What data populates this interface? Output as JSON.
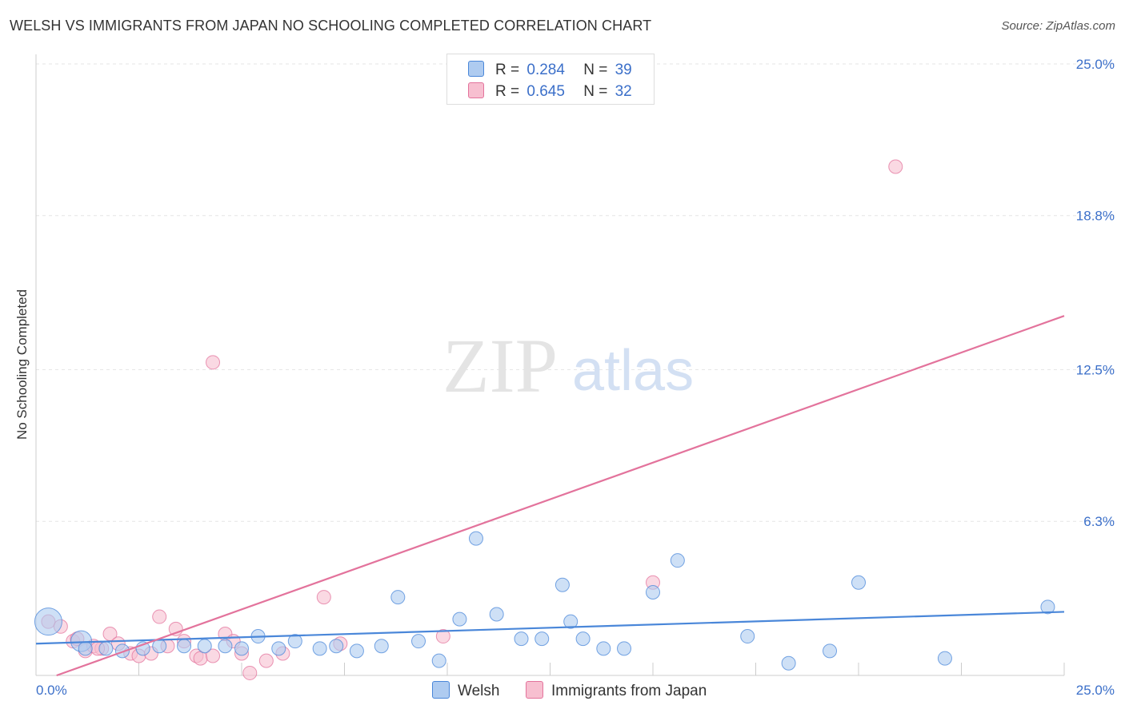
{
  "title": "WELSH VS IMMIGRANTS FROM JAPAN NO SCHOOLING COMPLETED CORRELATION CHART",
  "source": "Source: ZipAtlas.com",
  "watermark": {
    "zip": "ZIP",
    "atlas": "atlas"
  },
  "legend": {
    "r_label": "R =",
    "n_label": "N =",
    "rows": [
      {
        "r": "0.284",
        "n": "39"
      },
      {
        "r": "0.645",
        "n": "32"
      }
    ]
  },
  "chart_data": {
    "type": "scatter",
    "title": "WELSH VS IMMIGRANTS FROM JAPAN NO SCHOOLING COMPLETED CORRELATION CHART",
    "xlabel": "",
    "ylabel": "No Schooling Completed",
    "xlim": [
      0,
      25
    ],
    "ylim": [
      0,
      25
    ],
    "x_tick_labels": [
      "0.0%",
      "25.0%"
    ],
    "y_ticks": [
      6.3,
      12.5,
      18.8,
      25.0
    ],
    "y_tick_labels": [
      "6.3%",
      "12.5%",
      "18.8%",
      "25.0%"
    ],
    "grid": true,
    "legend_position": "top-center",
    "colors": {
      "welsh": "#4a87d9",
      "japan": "#e3739c",
      "welsh_fill": "#aecbf0",
      "japan_fill": "#f7bfd0",
      "tick_label": "#3b6fc9"
    },
    "series": [
      {
        "name": "Welsh",
        "r": 0.284,
        "n": 39,
        "trend": {
          "x": [
            0,
            25
          ],
          "y": [
            1.3,
            2.6
          ]
        },
        "points": [
          {
            "x": 0.3,
            "y": 2.2,
            "size": "large"
          },
          {
            "x": 1.1,
            "y": 1.4,
            "size": "large"
          },
          {
            "x": 1.2,
            "y": 1.1
          },
          {
            "x": 1.7,
            "y": 1.1
          },
          {
            "x": 2.1,
            "y": 1.0
          },
          {
            "x": 2.6,
            "y": 1.1
          },
          {
            "x": 3.0,
            "y": 1.2
          },
          {
            "x": 3.6,
            "y": 1.2
          },
          {
            "x": 4.1,
            "y": 1.2
          },
          {
            "x": 4.6,
            "y": 1.2
          },
          {
            "x": 5.0,
            "y": 1.1
          },
          {
            "x": 5.4,
            "y": 1.6
          },
          {
            "x": 5.9,
            "y": 1.1
          },
          {
            "x": 6.3,
            "y": 1.4
          },
          {
            "x": 6.9,
            "y": 1.1
          },
          {
            "x": 7.3,
            "y": 1.2
          },
          {
            "x": 7.8,
            "y": 1.0
          },
          {
            "x": 8.4,
            "y": 1.2
          },
          {
            "x": 8.8,
            "y": 3.2
          },
          {
            "x": 9.3,
            "y": 1.4
          },
          {
            "x": 9.8,
            "y": 0.6
          },
          {
            "x": 10.3,
            "y": 2.3
          },
          {
            "x": 10.7,
            "y": 5.6
          },
          {
            "x": 11.2,
            "y": 2.5
          },
          {
            "x": 11.8,
            "y": 1.5
          },
          {
            "x": 12.3,
            "y": 1.5
          },
          {
            "x": 12.8,
            "y": 3.7
          },
          {
            "x": 13.0,
            "y": 2.2
          },
          {
            "x": 13.3,
            "y": 1.5
          },
          {
            "x": 13.8,
            "y": 1.1
          },
          {
            "x": 14.3,
            "y": 1.1
          },
          {
            "x": 15.0,
            "y": 3.4
          },
          {
            "x": 15.6,
            "y": 4.7
          },
          {
            "x": 17.3,
            "y": 1.6
          },
          {
            "x": 18.3,
            "y": 0.5
          },
          {
            "x": 19.3,
            "y": 1.0
          },
          {
            "x": 20.0,
            "y": 3.8
          },
          {
            "x": 22.1,
            "y": 0.7
          },
          {
            "x": 24.6,
            "y": 2.8
          }
        ]
      },
      {
        "name": "Immigrants from Japan",
        "r": 0.645,
        "n": 32,
        "trend": {
          "x": [
            0.5,
            25
          ],
          "y": [
            0.0,
            14.7
          ]
        },
        "points": [
          {
            "x": 0.3,
            "y": 2.2
          },
          {
            "x": 0.6,
            "y": 2.0
          },
          {
            "x": 0.9,
            "y": 1.4
          },
          {
            "x": 1.0,
            "y": 1.5
          },
          {
            "x": 1.2,
            "y": 1.0
          },
          {
            "x": 1.4,
            "y": 1.2
          },
          {
            "x": 1.6,
            "y": 1.1
          },
          {
            "x": 1.8,
            "y": 1.7
          },
          {
            "x": 2.0,
            "y": 1.3
          },
          {
            "x": 2.3,
            "y": 0.9
          },
          {
            "x": 2.5,
            "y": 0.8
          },
          {
            "x": 2.8,
            "y": 0.9
          },
          {
            "x": 3.0,
            "y": 2.4
          },
          {
            "x": 3.2,
            "y": 1.2
          },
          {
            "x": 3.4,
            "y": 1.9
          },
          {
            "x": 3.6,
            "y": 1.4
          },
          {
            "x": 3.9,
            "y": 0.8
          },
          {
            "x": 4.0,
            "y": 0.7
          },
          {
            "x": 4.3,
            "y": 0.8
          },
          {
            "x": 4.3,
            "y": 12.8
          },
          {
            "x": 4.6,
            "y": 1.7
          },
          {
            "x": 4.8,
            "y": 1.4
          },
          {
            "x": 5.0,
            "y": 0.9
          },
          {
            "x": 5.2,
            "y": 0.1
          },
          {
            "x": 5.6,
            "y": 0.6
          },
          {
            "x": 6.0,
            "y": 0.9
          },
          {
            "x": 7.0,
            "y": 3.2
          },
          {
            "x": 7.4,
            "y": 1.3
          },
          {
            "x": 9.9,
            "y": 1.6
          },
          {
            "x": 15.0,
            "y": 3.8
          },
          {
            "x": 20.9,
            "y": 20.8
          },
          {
            "x": 1.5,
            "y": 1.1
          }
        ]
      }
    ]
  }
}
